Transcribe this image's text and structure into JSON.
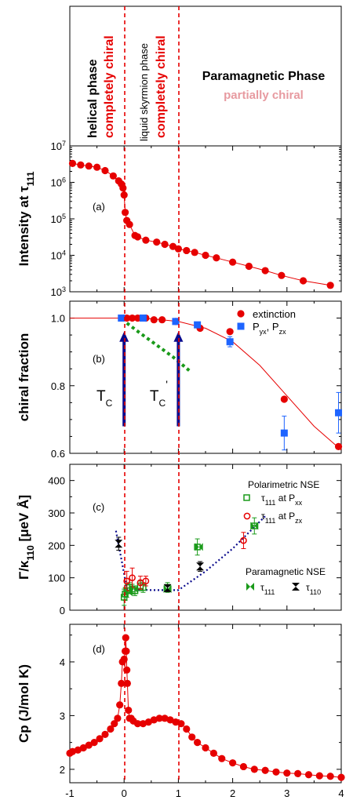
{
  "header": {
    "helical_line1": "helical phase",
    "helical_line2": "completely chiral",
    "skyrmion_line1": "liquid skyrmion phase",
    "skyrmion_line2": "completely chiral",
    "para_line1": "Paramagnetic Phase",
    "para_line2": "partially chiral"
  },
  "colors": {
    "red": "#e60000",
    "blue": "#1e64ff",
    "green": "#1a9a1a",
    "navy": "#0a0a8c",
    "pink": "#e79aa0"
  },
  "x_ticks": [
    "-1",
    "0",
    "1",
    "2",
    "3",
    "4"
  ],
  "chart_data": [
    {
      "id": "a",
      "type": "line",
      "panel_label": "(a)",
      "ylabel": "Intensity at τ111",
      "yscale": "log",
      "ylim": [
        1000,
        10000000
      ],
      "y_ticks": [
        "10^3",
        "10^4",
        "10^5",
        "10^6",
        "10^7"
      ],
      "xlim": [
        -1,
        4
      ],
      "series": [
        {
          "x": [
            -0.95,
            -0.8,
            -0.65,
            -0.5,
            -0.35,
            -0.2,
            -0.1,
            -0.05,
            -0.02,
            0.0,
            0.02,
            0.05,
            0.1,
            0.2,
            0.25,
            0.4,
            0.6,
            0.75,
            0.9,
            1.0,
            1.15,
            1.3,
            1.5,
            1.7,
            2.0,
            2.3,
            2.6,
            2.9,
            3.3,
            3.8
          ],
          "y": [
            3300000,
            3000000,
            2800000,
            2600000,
            2100000,
            1500000,
            1100000,
            900000,
            700000,
            450000,
            150000,
            90000,
            70000,
            35000,
            32000,
            26000,
            23000,
            20000,
            17500,
            15000,
            13500,
            12000,
            10000,
            8500,
            6500,
            5000,
            3800,
            2800,
            2000,
            1500
          ]
        }
      ]
    },
    {
      "id": "b",
      "type": "scatter",
      "panel_label": "(b)",
      "ylabel": "chiral fraction",
      "ylim": [
        0.6,
        1.05
      ],
      "y_ticks": [
        "0.6",
        "0.8",
        "1.0"
      ],
      "xlim": [
        -1,
        4
      ],
      "series": [
        {
          "name": "extinction",
          "x": [
            0.05,
            0.15,
            0.25,
            0.4,
            0.55,
            0.7,
            0.95,
            1.4,
            1.95,
            2.95,
            3.95
          ],
          "y": [
            1.0,
            1.0,
            1.0,
            1.0,
            0.995,
            0.995,
            0.99,
            0.97,
            0.96,
            0.76,
            0.62
          ]
        },
        {
          "name": "Pyx, Pzx",
          "x": [
            -0.05,
            0.35,
            0.95,
            1.35,
            1.95,
            2.95,
            3.95
          ],
          "y": [
            1.0,
            1.0,
            0.99,
            0.98,
            0.93,
            0.66,
            0.72
          ],
          "yerr": [
            0,
            0,
            0,
            0,
            0.015,
            0.05,
            0.06
          ]
        },
        {
          "name": "",
          "type": "line",
          "x": [
            -1,
            -0.5,
            0,
            0.5,
            1,
            1.5,
            2,
            2.5,
            3,
            3.5,
            4
          ],
          "y": [
            1.0,
            1.0,
            1.0,
            0.998,
            0.99,
            0.97,
            0.93,
            0.86,
            0.77,
            0.68,
            0.61
          ]
        },
        {
          "name": "",
          "type": "dotted",
          "x": [
            0.05,
            0.3,
            0.6,
            0.9,
            1.2
          ],
          "y": [
            0.985,
            0.955,
            0.92,
            0.885,
            0.845
          ]
        }
      ],
      "annotations": [
        {
          "text_main": "T",
          "text_sub": "C",
          "x": 0,
          "y_bottom": 0.68,
          "y_top": 0.96
        },
        {
          "text_main": "T",
          "text_sub": "C",
          "text_sup": "'",
          "x": 1,
          "y_bottom": 0.68,
          "y_top": 0.96
        }
      ]
    },
    {
      "id": "c",
      "type": "scatter",
      "panel_label": "(c)",
      "ylabel": "Γ/κ110 [μeV Å]",
      "ylim": [
        0,
        450
      ],
      "y_ticks": [
        "0",
        "100",
        "200",
        "300",
        "400"
      ],
      "xlim": [
        -1,
        4
      ],
      "legend_title_1": "Polarimetric NSE",
      "legend_title_2": "Paramagnetic NSE",
      "series": [
        {
          "name": "τ111 at Pxx",
          "x": [
            0.0,
            0.02,
            0.05,
            0.1,
            0.15,
            0.2,
            0.3,
            0.35,
            0.8,
            1.35,
            2.4
          ],
          "y": [
            40,
            50,
            60,
            70,
            65,
            60,
            75,
            70,
            70,
            195,
            260
          ],
          "yerr": [
            25,
            20,
            20,
            15,
            15,
            15,
            15,
            15,
            15,
            25,
            25
          ]
        },
        {
          "name": "τ111 at Pzx",
          "x": [
            0.05,
            0.15,
            0.3,
            0.4,
            2.2
          ],
          "y": [
            90,
            100,
            85,
            90,
            215
          ],
          "yerr": [
            30,
            30,
            20,
            15,
            25
          ]
        },
        {
          "name": "τ111",
          "x": [
            0.08,
            0.18,
            0.8,
            1.38,
            2.4
          ],
          "y": [
            55,
            65,
            65,
            195,
            260
          ]
        },
        {
          "name": "τ110",
          "x": [
            -0.1,
            0.8,
            1.4
          ],
          "y": [
            205,
            68,
            135
          ],
          "yerr": [
            20,
            10,
            15
          ]
        },
        {
          "name": "",
          "type": "dotted",
          "x": [
            -0.15,
            -0.1,
            -0.03,
            0.05,
            0.5,
            1.0,
            1.5,
            2.0,
            2.6
          ],
          "y": [
            245,
            200,
            140,
            65,
            62,
            62,
            120,
            190,
            290
          ]
        }
      ]
    },
    {
      "id": "d",
      "type": "line",
      "panel_label": "(d)",
      "ylabel": "Cp (J/mol K)",
      "ylim": [
        1.75,
        4.7
      ],
      "y_ticks": [
        "2",
        "3",
        "4"
      ],
      "xlim": [
        -1,
        4
      ],
      "series": [
        {
          "x": [
            -1.0,
            -0.95,
            -0.85,
            -0.75,
            -0.65,
            -0.55,
            -0.45,
            -0.35,
            -0.25,
            -0.18,
            -0.12,
            -0.08,
            -0.05,
            -0.03,
            0.0,
            0.02,
            0.03,
            0.04,
            0.05,
            0.06,
            0.08,
            0.1,
            0.13,
            0.17,
            0.25,
            0.35,
            0.45,
            0.55,
            0.65,
            0.75,
            0.85,
            0.95,
            1.05,
            1.15,
            1.25,
            1.35,
            1.5,
            1.65,
            1.8,
            2.0,
            2.2,
            2.4,
            2.6,
            2.8,
            3.0,
            3.2,
            3.4,
            3.6,
            3.8,
            4.0
          ],
          "y": [
            2.3,
            2.33,
            2.36,
            2.4,
            2.45,
            2.5,
            2.57,
            2.65,
            2.75,
            2.85,
            2.95,
            3.2,
            3.6,
            4.0,
            4.05,
            4.2,
            4.45,
            4.2,
            3.85,
            3.6,
            3.1,
            2.95,
            2.95,
            2.9,
            2.85,
            2.85,
            2.88,
            2.92,
            2.95,
            2.95,
            2.92,
            2.88,
            2.85,
            2.75,
            2.6,
            2.5,
            2.4,
            2.3,
            2.2,
            2.12,
            2.05,
            2.0,
            1.98,
            1.95,
            1.93,
            1.92,
            1.9,
            1.88,
            1.87,
            1.85
          ]
        }
      ]
    }
  ]
}
